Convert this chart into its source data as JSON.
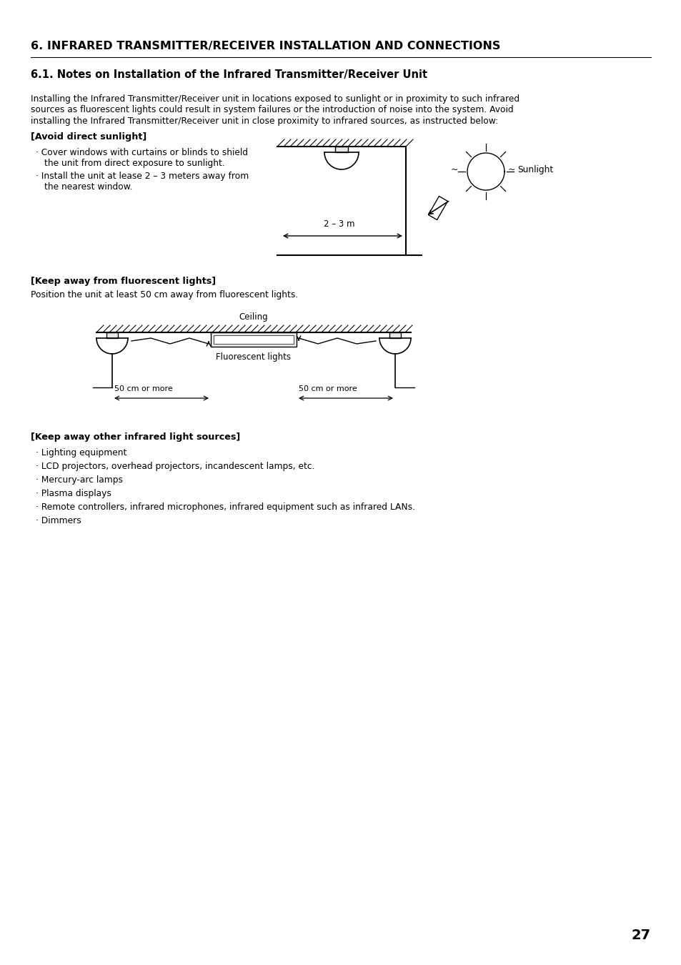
{
  "title": "6. INFRARED TRANSMITTER/RECEIVER INSTALLATION AND CONNECTIONS",
  "subtitle": "6.1. Notes on Installation of the Infrared Transmitter/Receiver Unit",
  "intro_text": "Installing the Infrared Transmitter/Receiver unit in locations exposed to sunlight or in proximity to such infrared\nsources as fluorescent lights could result in system failures or the introduction of noise into the system. Avoid\ninstalling the Infrared Transmitter/Receiver unit in close proximity to infrared sources, as instructed below:",
  "section1_heading": "[Avoid direct sunlight]",
  "section1_bullet1_line1": "Cover windows with curtains or blinds to shield",
  "section1_bullet1_line2": "the unit from direct exposure to sunlight.",
  "section1_bullet2_line1": "Install the unit at lease 2 – 3 meters away from",
  "section1_bullet2_line2": "the nearest window.",
  "section2_heading": "[Keep away from fluorescent lights]",
  "section2_text": "Position the unit at least 50 cm away from fluorescent lights.",
  "section3_heading": "[Keep away other infrared light sources]",
  "section3_bullets": [
    "Lighting equipment",
    "LCD projectors, overhead projectors, incandescent lamps, etc.",
    "Mercury-arc lamps",
    "Plasma displays",
    "Remote controllers, infrared microphones, infrared equipment such as infrared LANs.",
    "Dimmers"
  ],
  "page_number": "27",
  "bg_color": "#ffffff",
  "text_color": "#000000",
  "dim_arrow_label": "2 – 3 m",
  "ceiling_label": "Ceiling",
  "fluorescent_label": "Fluorescent lights",
  "sunlight_label": "Sunlight",
  "dist_label": "50 cm or more"
}
